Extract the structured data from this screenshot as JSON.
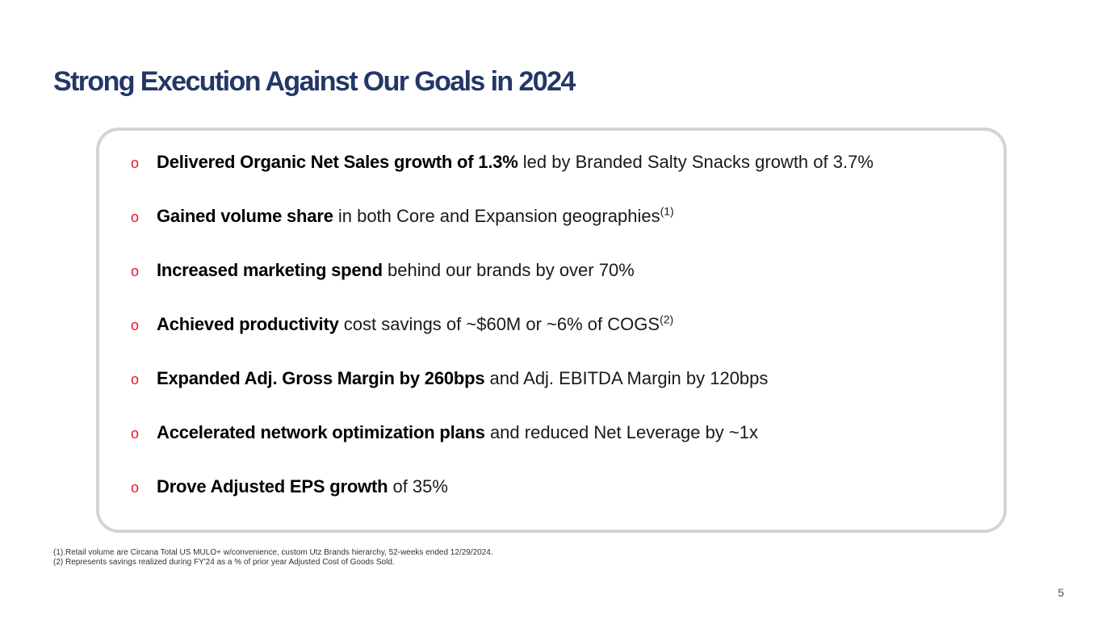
{
  "title": "Strong Execution Against Our Goals in 2024",
  "bullet_marker": "o",
  "bullets": [
    {
      "bold": "Delivered Organic Net Sales growth of 1.3%",
      "text": " led by Branded Salty Snacks growth of 3.7%",
      "sup": ""
    },
    {
      "bold": "Gained volume share",
      "text": " in both Core and Expansion geographies",
      "sup": "(1)"
    },
    {
      "bold": "Increased marketing spend",
      "text": " behind our brands by over 70%",
      "sup": ""
    },
    {
      "bold": "Achieved productivity",
      "text": " cost savings of ~$60M or ~6% of COGS",
      "sup": "(2)"
    },
    {
      "bold": "Expanded Adj. Gross Margin by 260bps",
      "text": " and Adj. EBITDA Margin by 120bps",
      "sup": ""
    },
    {
      "bold": "Accelerated network optimization plans",
      "text": " and reduced Net Leverage by ~1x",
      "sup": ""
    },
    {
      "bold": "Drove Adjusted EPS growth",
      "text": " of 35%",
      "sup": ""
    }
  ],
  "footnotes": [
    "(1).Retail volume are Circana Total US MULO+ w/convenience, custom Utz Brands hierarchy, 52-weeks ended 12/29/2024.",
    "(2) Represents savings realized during FY'24 as a % of prior year Adjusted Cost of Goods Sold."
  ],
  "page_number": "5"
}
